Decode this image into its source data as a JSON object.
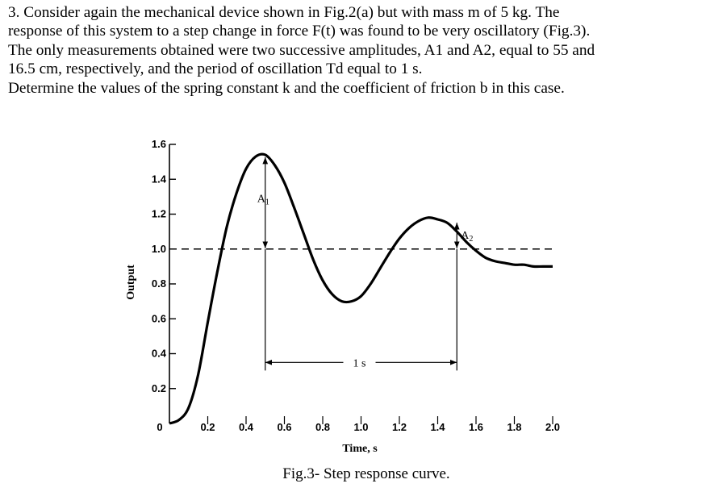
{
  "problem": {
    "lines": [
      "3. Consider again the mechanical device shown in Fig.2(a) but with mass m of 5 kg. The",
      "response of this system to a step change in force F(t) was found to be very oscillatory (Fig.3).",
      "The only measurements obtained were two successive amplitudes, A1 and A2, equal to 55 and",
      "16.5 cm, respectively, and the period of oscillation Td equal to 1 s.",
      "Determine the values of the spring constant k and the coefficient of friction b in this case."
    ]
  },
  "chart_data": {
    "type": "line",
    "title": "",
    "caption": "Fig.3- Step response curve.",
    "xlabel": "Time, s",
    "ylabel": "Output",
    "xlim": [
      0,
      2.0
    ],
    "ylim": [
      0,
      1.6
    ],
    "xticks": [
      "0",
      "0.2",
      "0.4",
      "0.6",
      "0.8",
      "1.0",
      "1.2",
      "1.4",
      "1.6",
      "1.8",
      "2.0"
    ],
    "yticks": [
      "0.2",
      "0.4",
      "0.6",
      "0.8",
      "1.0",
      "1.2",
      "1.4",
      "1.6"
    ],
    "x": [
      0,
      0.05,
      0.1,
      0.15,
      0.2,
      0.25,
      0.3,
      0.35,
      0.4,
      0.45,
      0.5,
      0.55,
      0.6,
      0.65,
      0.7,
      0.75,
      0.8,
      0.85,
      0.9,
      0.95,
      1.0,
      1.05,
      1.1,
      1.15,
      1.2,
      1.25,
      1.3,
      1.35,
      1.4,
      1.45,
      1.5,
      1.55,
      1.6,
      1.65,
      1.7,
      1.75,
      1.8,
      1.85,
      1.9,
      1.95,
      2.0
    ],
    "values": [
      0,
      0.02,
      0.09,
      0.28,
      0.58,
      0.87,
      1.13,
      1.32,
      1.46,
      1.53,
      1.54,
      1.48,
      1.38,
      1.24,
      1.09,
      0.94,
      0.82,
      0.74,
      0.7,
      0.7,
      0.73,
      0.8,
      0.89,
      0.98,
      1.06,
      1.12,
      1.16,
      1.18,
      1.17,
      1.15,
      1.1,
      1.04,
      0.99,
      0.95,
      0.93,
      0.92,
      0.91,
      0.91,
      0.9,
      0.9,
      0.9
    ],
    "reference_line": {
      "y": 1.0,
      "style": "dashed"
    },
    "annotations": {
      "a1": {
        "label": "A",
        "sub": "1",
        "x": 0.5,
        "from": 1.0,
        "to": 1.54
      },
      "a2": {
        "label": "A",
        "sub": "2",
        "x": 1.5,
        "from": 1.0,
        "to": 1.16
      },
      "period": {
        "label": "1 s",
        "x_from": 0.5,
        "x_to": 1.5,
        "y": 0.35
      }
    },
    "grid": false,
    "legend": "none"
  }
}
